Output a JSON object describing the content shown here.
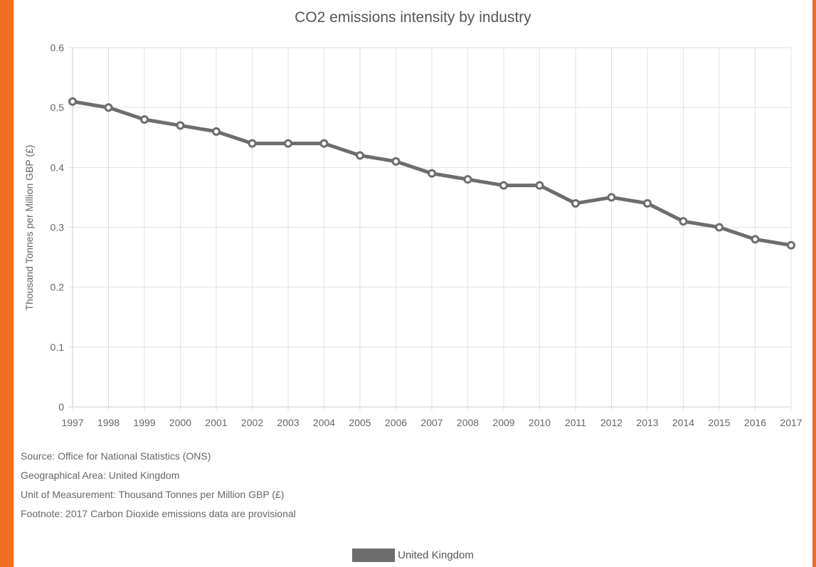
{
  "chart_data": {
    "type": "line",
    "title": "CO2 emissions intensity by industry",
    "ylabel": "Thousand Tonnes per Million GBP (£)",
    "xlabel": "",
    "ylim": [
      0,
      0.6
    ],
    "yticks": [
      0,
      0.1,
      0.2,
      0.3,
      0.4,
      0.5,
      0.6
    ],
    "ytick_labels": [
      "0",
      "0.1",
      "0.2",
      "0.3",
      "0.4",
      "0.5",
      "0.6"
    ],
    "categories": [
      "1997",
      "1998",
      "1999",
      "2000",
      "2001",
      "2002",
      "2003",
      "2004",
      "2005",
      "2006",
      "2007",
      "2008",
      "2009",
      "2010",
      "2011",
      "2012",
      "2013",
      "2014",
      "2015",
      "2016",
      "2017"
    ],
    "series": [
      {
        "name": "United Kingdom",
        "color": "#6d6d6d",
        "values": [
          0.51,
          0.5,
          0.48,
          0.47,
          0.46,
          0.44,
          0.44,
          0.44,
          0.42,
          0.41,
          0.39,
          0.38,
          0.37,
          0.37,
          0.34,
          0.35,
          0.34,
          0.31,
          0.3,
          0.28,
          0.27
        ]
      }
    ],
    "grid": true,
    "legend_position": "bottom"
  },
  "notes": {
    "source": "Source: Office for National Statistics (ONS)",
    "area": "Geographical Area: United Kingdom",
    "unit": "Unit of Measurement: Thousand Tonnes per Million GBP (£)",
    "footnote": "Footnote: 2017 Carbon Dioxide emissions data are provisional"
  },
  "legend": {
    "label": "United Kingdom"
  },
  "colors": {
    "frame": "#f26d21",
    "background": "#ffffff",
    "series": "#6d6d6d",
    "grid": "#e2e2e2"
  }
}
